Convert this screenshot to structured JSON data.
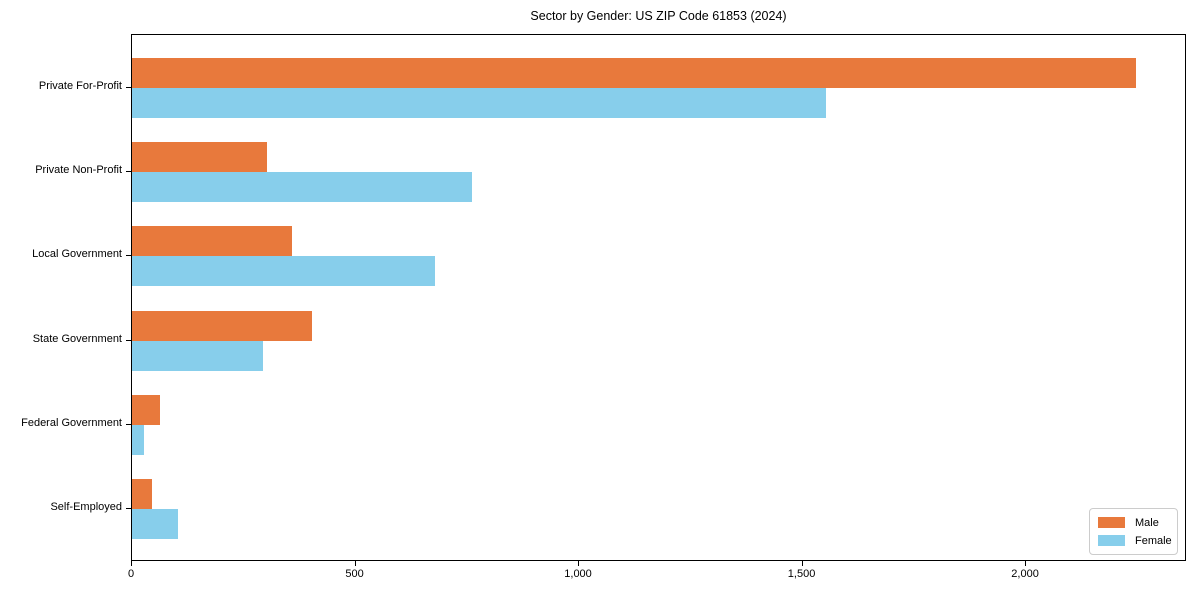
{
  "chart_data": {
    "type": "bar",
    "orientation": "horizontal",
    "title": "Sector by Gender: US ZIP Code 61853 (2024)",
    "categories": [
      "Private For-Profit",
      "Private Non-Profit",
      "Local Government",
      "State Government",
      "Federal Government",
      "Self-Employed"
    ],
    "series": [
      {
        "name": "Male",
        "color": "#E8793C",
        "values": [
          2245,
          301,
          359,
          402,
          63,
          44
        ]
      },
      {
        "name": "Female",
        "color": "#87CEEB",
        "values": [
          1553,
          761,
          677,
          293,
          27,
          104
        ]
      }
    ],
    "xlabel": "",
    "ylabel": "",
    "xlim": [
      0,
      2360
    ],
    "x_ticks": [
      {
        "value": 0,
        "label": "0"
      },
      {
        "value": 500,
        "label": "500"
      },
      {
        "value": 1000,
        "label": "1,000"
      },
      {
        "value": 1500,
        "label": "1,500"
      },
      {
        "value": 2000,
        "label": "2,000"
      }
    ],
    "legend": {
      "position": "lower right",
      "entries": [
        "Male",
        "Female"
      ]
    },
    "grid": false,
    "colors": {
      "male": "#E8793C",
      "female": "#87CEEB",
      "axis": "#000000",
      "legend_border": "#cccccc"
    }
  }
}
